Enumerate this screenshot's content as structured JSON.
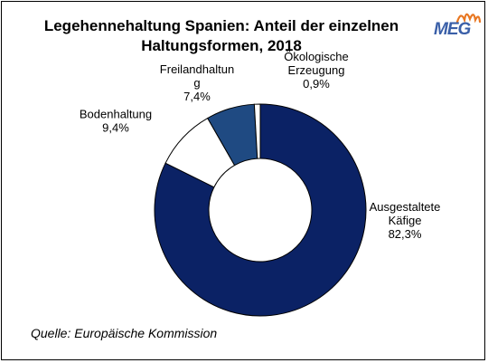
{
  "brand": {
    "logo_text": "MEG",
    "logo_color": "#3a5fa8",
    "sun_color": "#e87722"
  },
  "chart_data": {
    "type": "pie",
    "variant": "donut",
    "title": "Legehennehaltung Spanien: Anteil der einzelnen\nHaltungsformen, 2018",
    "categories": [
      "Ausgestaltete Käfige",
      "Bodenhaltung",
      "Freilandhaltung",
      "Ökologische Erzeugung"
    ],
    "values": [
      82.3,
      9.4,
      7.4,
      0.9
    ],
    "value_labels": [
      "82,3%",
      "9,4%",
      "7,4%",
      "0,9%"
    ],
    "label_lines": [
      [
        "Ausgestaltete",
        "Käfige"
      ],
      [
        "Bodenhaltung"
      ],
      [
        "Freilandhaltun",
        "g"
      ],
      [
        "Ökologische",
        "Erzeugung"
      ]
    ],
    "colors": [
      "#0b2265",
      "#ffffff",
      "#1f4a82",
      "#ffffff"
    ],
    "legend": "none"
  },
  "source": "Quelle: Europäische Kommission"
}
